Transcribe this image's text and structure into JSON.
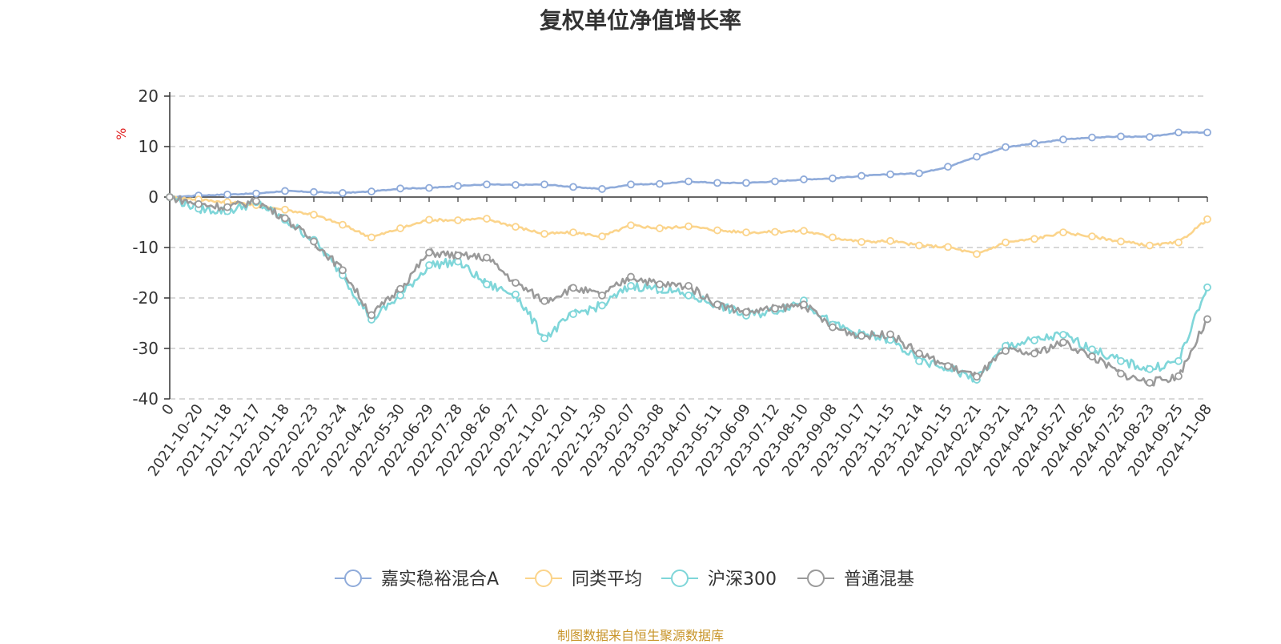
{
  "title": "复权单位净值增长率",
  "source": "制图数据来自恒生聚源数据库",
  "colors": {
    "series": [
      "#8fabda",
      "#fbd48b",
      "#7fd6d9",
      "#9a9a9a"
    ],
    "grid": "#cccccc",
    "axis": "#333333",
    "unit": "#e02020",
    "source": "#c8952a"
  },
  "chart_data": {
    "type": "line",
    "ylabel": "%",
    "ylim": [
      -40,
      20
    ],
    "yticks": [
      20,
      10,
      0,
      -10,
      -20,
      -30,
      -40
    ],
    "grid": "horizontal dashed",
    "legend_position": "bottom",
    "categories": [
      "0",
      "2021-10-20",
      "2021-11-18",
      "2021-12-17",
      "2022-01-18",
      "2022-02-23",
      "2022-03-24",
      "2022-04-26",
      "2022-05-30",
      "2022-06-29",
      "2022-07-28",
      "2022-08-26",
      "2022-09-27",
      "2022-11-02",
      "2022-12-01",
      "2022-12-30",
      "2023-02-07",
      "2023-03-08",
      "2023-04-07",
      "2023-05-11",
      "2023-06-09",
      "2023-07-12",
      "2023-08-10",
      "2023-09-08",
      "2023-10-17",
      "2023-11-15",
      "2023-12-14",
      "2024-01-15",
      "2024-02-21",
      "2024-03-21",
      "2024-04-23",
      "2024-05-27",
      "2024-06-26",
      "2024-07-25",
      "2024-08-23",
      "2024-09-25",
      "2024-11-08"
    ],
    "series": [
      {
        "name": "嘉实稳裕混合A",
        "values": [
          0,
          0.3,
          0.5,
          0.7,
          1.2,
          1.0,
          0.8,
          1.1,
          1.7,
          1.8,
          2.2,
          2.5,
          2.4,
          2.5,
          2.0,
          1.6,
          2.5,
          2.6,
          3.1,
          2.8,
          2.8,
          3.1,
          3.5,
          3.7,
          4.2,
          4.5,
          4.7,
          6.0,
          8.0,
          9.9,
          10.6,
          11.4,
          11.8,
          12.0,
          11.9,
          12.8,
          12.8
        ]
      },
      {
        "name": "同类平均",
        "values": [
          0,
          -0.5,
          -1.0,
          -1.6,
          -2.5,
          -3.5,
          -5.5,
          -8.0,
          -6.2,
          -4.5,
          -4.6,
          -4.3,
          -5.9,
          -7.3,
          -7.0,
          -7.8,
          -5.6,
          -6.2,
          -5.8,
          -6.6,
          -7.0,
          -6.9,
          -6.7,
          -8.0,
          -8.9,
          -8.7,
          -9.6,
          -9.9,
          -11.3,
          -9.0,
          -8.3,
          -7.0,
          -7.8,
          -8.8,
          -9.6,
          -9.0,
          -4.4
        ]
      },
      {
        "name": "沪深300",
        "values": [
          0,
          -2.3,
          -2.8,
          -1.0,
          -4.5,
          -8.5,
          -15.5,
          -24.3,
          -19.5,
          -13.5,
          -12.8,
          -17.3,
          -19.3,
          -28.0,
          -23.2,
          -21.5,
          -17.6,
          -18.2,
          -19.5,
          -21.3,
          -23.5,
          -22.5,
          -20.5,
          -25.3,
          -27.3,
          -28.3,
          -32.5,
          -33.8,
          -36.2,
          -29.5,
          -28.4,
          -27.3,
          -30.2,
          -32.5,
          -34.1,
          -32.5,
          -17.9
        ]
      },
      {
        "name": "普通混基",
        "values": [
          0,
          -1.4,
          -2.0,
          -0.8,
          -4.2,
          -8.8,
          -14.5,
          -23.4,
          -18.2,
          -11.0,
          -11.6,
          -12.0,
          -17.0,
          -20.6,
          -18.0,
          -19.5,
          -15.8,
          -17.3,
          -17.6,
          -21.3,
          -22.8,
          -22.1,
          -21.3,
          -25.8,
          -27.5,
          -27.2,
          -31.0,
          -33.5,
          -35.6,
          -30.5,
          -31.0,
          -28.8,
          -31.6,
          -35.0,
          -36.8,
          -35.5,
          -24.2
        ]
      }
    ]
  }
}
